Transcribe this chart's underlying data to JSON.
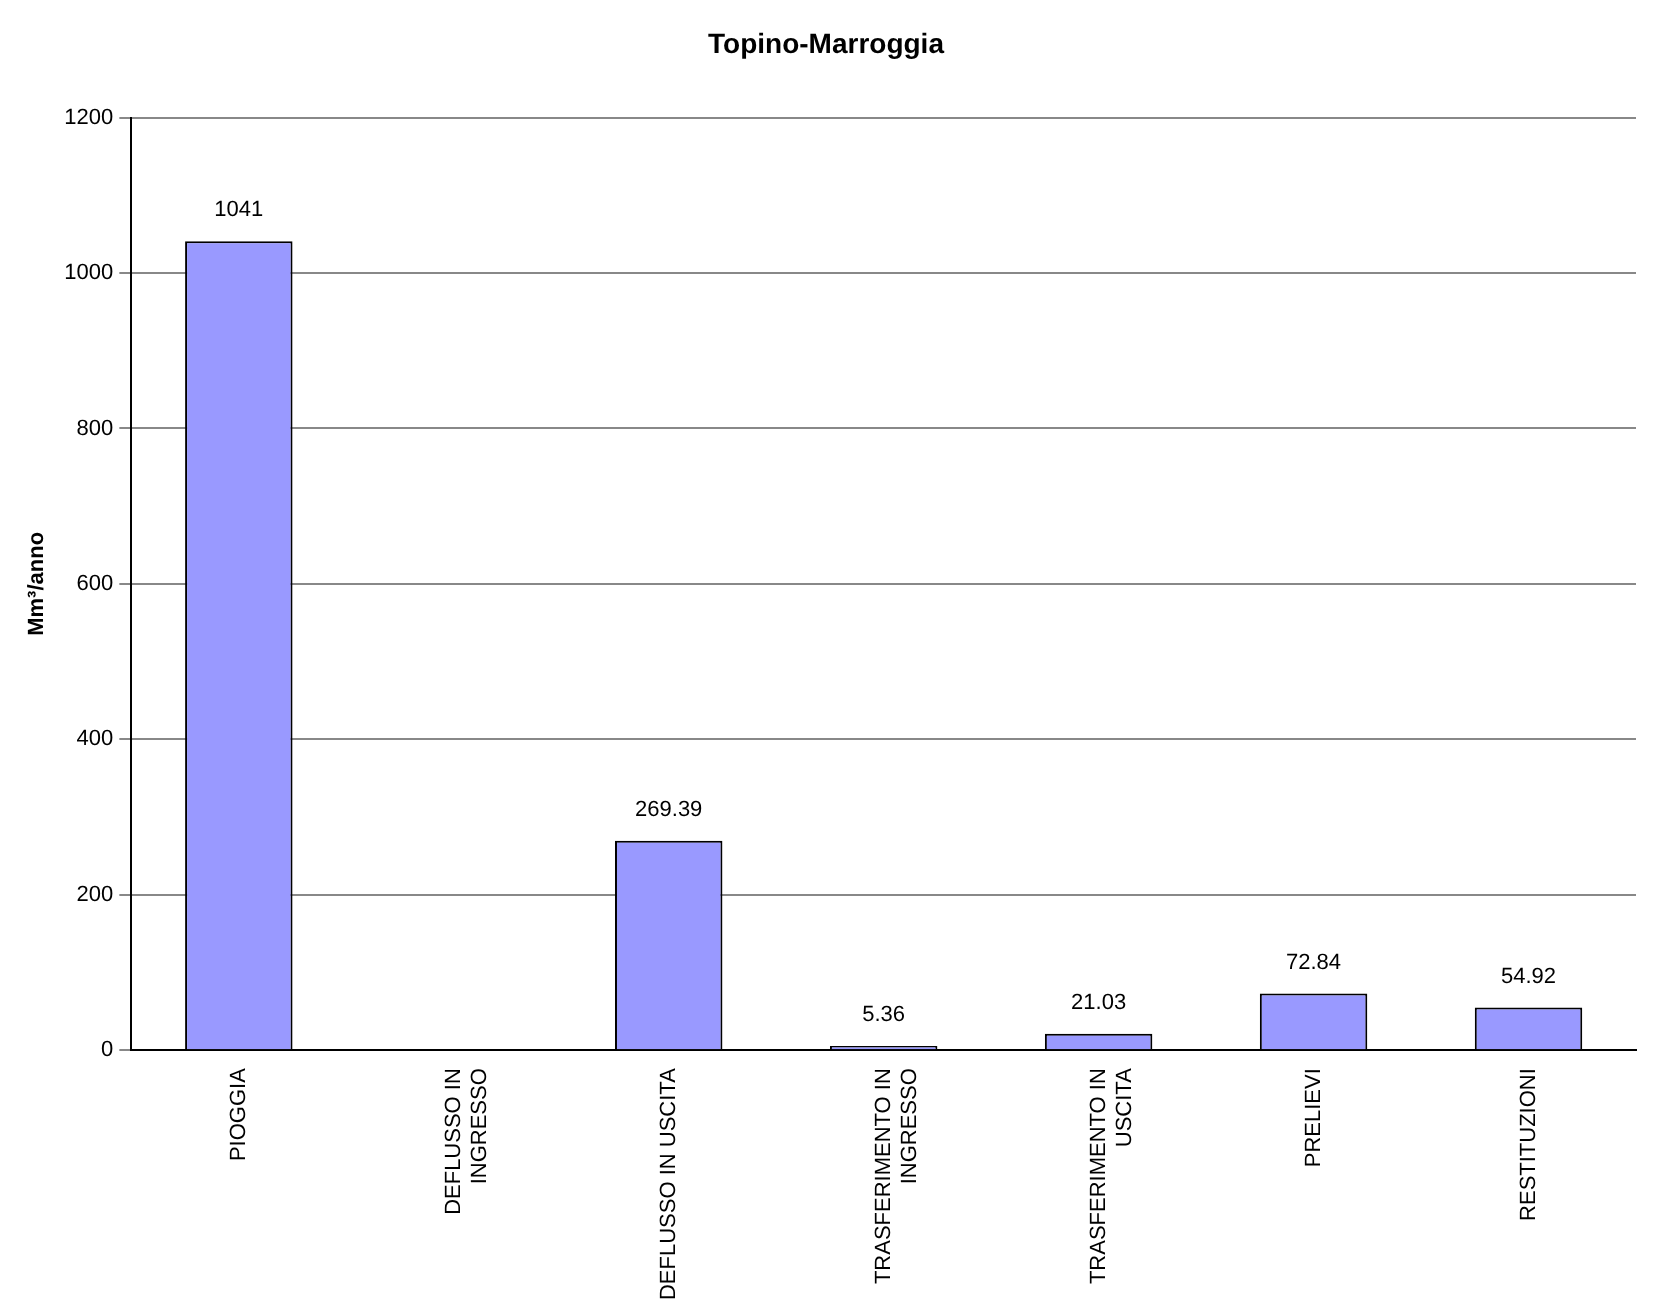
{
  "chart_data": {
    "type": "bar",
    "title": "Topino-Marroggia",
    "ylabel": "Mm³/anno",
    "categories": [
      "PIOGGIA",
      "DEFLUSSO IN INGRESSO",
      "DEFLUSSO IN USCITA",
      "TRASFERIMENTO IN INGRESSO",
      "TRASFERIMENTO IN USCITA",
      "PRELIEVI",
      "RESTITUZIONI"
    ],
    "values": [
      1041,
      null,
      269.39,
      5.36,
      21.03,
      72.84,
      54.92
    ],
    "color": "#9999ff",
    "ylim": [
      0,
      1200
    ],
    "yticks": [
      0,
      200,
      400,
      600,
      800,
      1000,
      1200
    ],
    "grid": "y",
    "data_labels": true,
    "legend": false
  }
}
